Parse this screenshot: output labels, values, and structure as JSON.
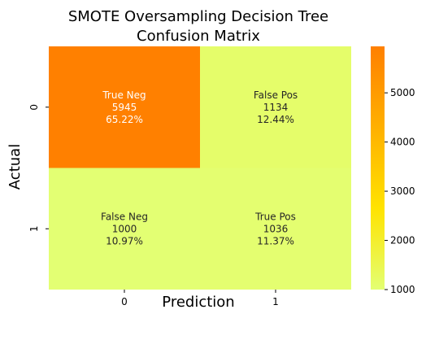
{
  "chart_data": {
    "type": "heatmap",
    "title": "SMOTE Oversampling Decision Tree\nConfusion Matrix",
    "xlabel": "Prediction",
    "ylabel": "Actual",
    "x_categories": [
      "0",
      "1"
    ],
    "y_categories": [
      "0",
      "1"
    ],
    "values": [
      [
        5945,
        1134
      ],
      [
        1000,
        1036
      ]
    ],
    "cell_labels": [
      [
        "True Neg",
        "False Pos"
      ],
      [
        "False Neg",
        "True Pos"
      ]
    ],
    "cell_percents": [
      [
        "65.22%",
        "12.44%"
      ],
      [
        "10.97%",
        "11.37%"
      ]
    ],
    "colorbar": {
      "vmin": 1000,
      "vmax": 5945,
      "ticks": [
        1000,
        2000,
        3000,
        4000,
        5000
      ],
      "colors": [
        "#e3ff73",
        "#ffe300",
        "#ffb000",
        "#ff8000"
      ]
    }
  }
}
